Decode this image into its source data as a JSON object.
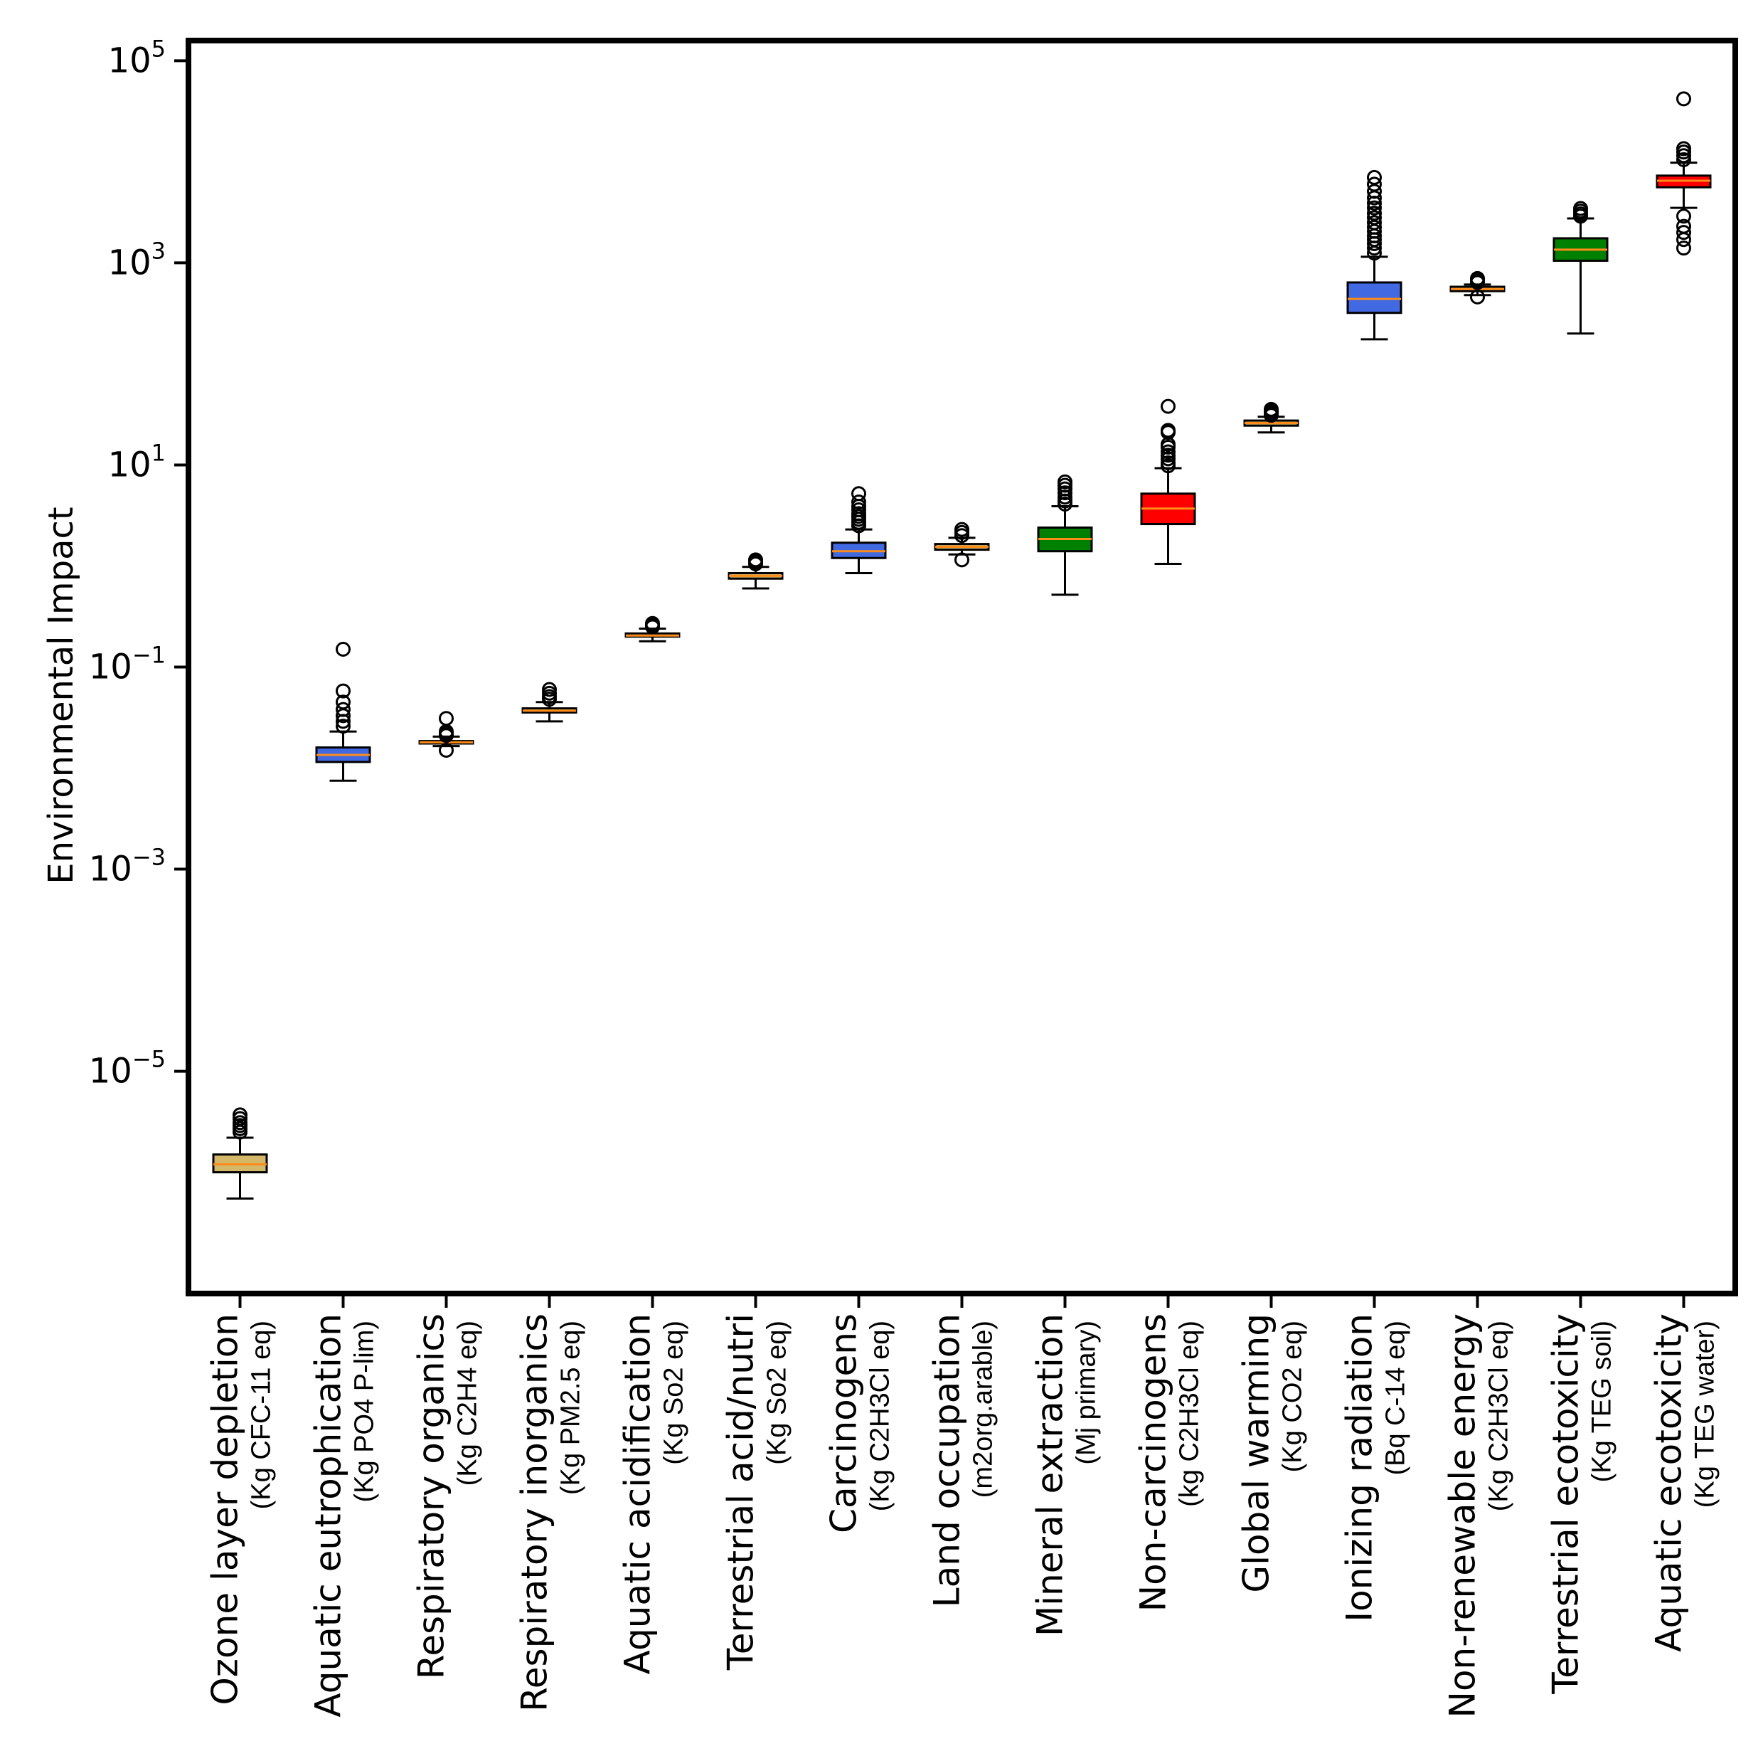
{
  "chart_data": {
    "type": "box",
    "ylabel": "Environmental Impact",
    "yscale": "log",
    "ylim_exponent": [
      -7.2,
      5.2
    ],
    "ytick_exponents": [
      5,
      3,
      1,
      -1,
      -3,
      -5
    ],
    "ytick_base": "10",
    "categories": [
      {
        "name": "Ozone layer depletion",
        "unit": "(Kg CFC-11 eq)",
        "color": "#d4b86a",
        "whislo": 5.5e-07,
        "q1": 1e-06,
        "med": 1.2e-06,
        "q3": 1.5e-06,
        "whishi": 2.2e-06,
        "fliers": [
          2.5e-06,
          2.7e-06,
          2.9e-06,
          3.1e-06,
          3.4e-06,
          3.7e-06
        ]
      },
      {
        "name": "Aquatic eutrophication",
        "unit": "(Kg PO4 P-lim)",
        "color": "#4169e1",
        "whislo": 0.0075,
        "q1": 0.0115,
        "med": 0.0135,
        "q3": 0.016,
        "whishi": 0.023,
        "fliers": [
          0.026,
          0.029,
          0.033,
          0.038,
          0.045,
          0.058,
          0.15
        ]
      },
      {
        "name": "Respiratory organics",
        "unit": "(Kg C2H4 eq)",
        "color": "#d4b86a",
        "whislo": 0.0165,
        "q1": 0.0175,
        "med": 0.018,
        "q3": 0.0185,
        "whishi": 0.0205,
        "fliers": [
          0.015,
          0.021,
          0.022,
          0.023,
          0.031
        ]
      },
      {
        "name": "Respiratory inorganics",
        "unit": "(Kg PM2.5 eq)",
        "color": "#d4b86a",
        "whislo": 0.029,
        "q1": 0.0355,
        "med": 0.037,
        "q3": 0.039,
        "whishi": 0.045,
        "fliers": [
          0.048,
          0.051,
          0.055,
          0.06
        ]
      },
      {
        "name": "Aquatic acidification",
        "unit": "(Kg So2 eq)",
        "color": "#d4b86a",
        "whislo": 0.18,
        "q1": 0.2,
        "med": 0.205,
        "q3": 0.215,
        "whishi": 0.24,
        "fliers": [
          0.25,
          0.26,
          0.27
        ]
      },
      {
        "name": "Terrestrial acid/nutri",
        "unit": "(Kg So2 eq)",
        "color": "#d4b86a",
        "whislo": 0.6,
        "q1": 0.75,
        "med": 0.8,
        "q3": 0.85,
        "whishi": 0.98,
        "fliers": [
          1.05,
          1.1,
          1.15
        ]
      },
      {
        "name": "Carcinogens",
        "unit": "(Kg C2H3Cl eq)",
        "color": "#4169e1",
        "whislo": 0.85,
        "q1": 1.2,
        "med": 1.4,
        "q3": 1.7,
        "whishi": 2.3,
        "fliers": [
          2.5,
          2.7,
          2.9,
          3.1,
          3.3,
          3.6,
          3.9,
          4.3,
          5.2
        ]
      },
      {
        "name": "Land occupation",
        "unit": "(m2org.arable)",
        "color": "#d4b86a",
        "whislo": 1.3,
        "q1": 1.45,
        "med": 1.55,
        "q3": 1.65,
        "whishi": 1.9,
        "fliers": [
          1.15,
          2.0,
          2.15,
          2.3
        ]
      },
      {
        "name": "Mineral extraction",
        "unit": "(Mj primary)",
        "color": "#008000",
        "whislo": 0.52,
        "q1": 1.4,
        "med": 1.85,
        "q3": 2.4,
        "whishi": 3.9,
        "fliers": [
          4.1,
          4.4,
          4.8,
          5.3,
          5.8,
          6.3,
          6.8
        ]
      },
      {
        "name": "Non-carcinogens",
        "unit": "(kg C2H3Cl eq)",
        "color": "#ff0000",
        "whislo": 1.05,
        "q1": 2.6,
        "med": 3.7,
        "q3": 5.2,
        "whishi": 9.3,
        "fliers": [
          9.8,
          10.5,
          11.5,
          12.5,
          13.5,
          15,
          16,
          21,
          22,
          38
        ]
      },
      {
        "name": "Global warming",
        "unit": "(Kg CO2 eq)",
        "color": "#d4b86a",
        "whislo": 21,
        "q1": 24.5,
        "med": 26,
        "q3": 27.5,
        "whishi": 30,
        "fliers": [
          31,
          32.5,
          34,
          35.5
        ]
      },
      {
        "name": "Ionizing radiation",
        "unit": "(Bq C-14 eq)",
        "color": "#4169e1",
        "whislo": 175,
        "q1": 320,
        "med": 440,
        "q3": 640,
        "whishi": 1150,
        "fliers": [
          1250,
          1400,
          1550,
          1700,
          1850,
          2050,
          2250,
          2500,
          2800,
          3100,
          3500,
          3900,
          4400,
          5100,
          6000,
          7000
        ]
      },
      {
        "name": "Non-renewable energy",
        "unit": "(Kg C2H3Cl eq)",
        "color": "#d4b86a",
        "whislo": 480,
        "q1": 525,
        "med": 550,
        "q3": 580,
        "whishi": 610,
        "fliers": [
          460,
          640,
          670,
          700
        ]
      },
      {
        "name": "Terrestrial ecotoxicity",
        "unit": "(Kg TEG soil)",
        "color": "#008000",
        "whislo": 200,
        "q1": 1050,
        "med": 1350,
        "q3": 1750,
        "whishi": 2750,
        "fliers": [
          2900,
          3050,
          3250,
          3450
        ]
      },
      {
        "name": "Aquatic ecotoxicity",
        "unit": "(Kg TEG water)",
        "color": "#ff0000",
        "whislo": 3500,
        "q1": 5600,
        "med": 6500,
        "q3": 7300,
        "whishi": 9800,
        "fliers": [
          1400,
          1700,
          2000,
          2300,
          2900,
          10500,
          11500,
          12500,
          13500,
          42000
        ]
      }
    ]
  }
}
